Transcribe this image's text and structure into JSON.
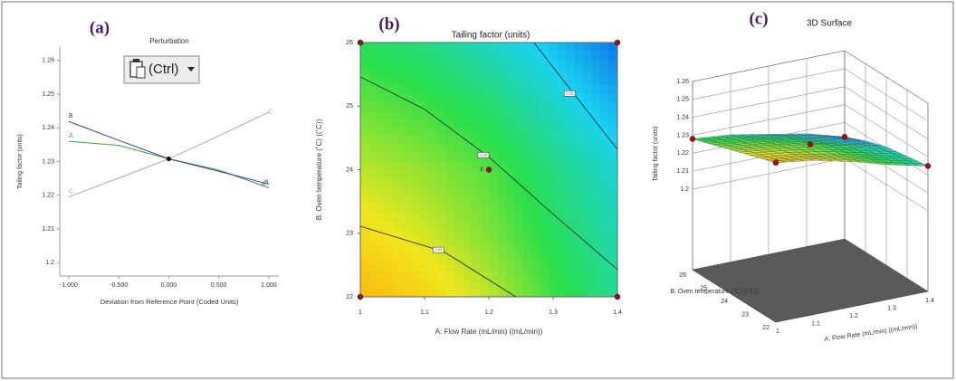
{
  "overlay": {
    "button_label": "(Ctrl)"
  },
  "chart_data": [
    {
      "type": "line",
      "panel": "(a)",
      "title": "Perturbation",
      "xlabel": "Deviation from Reference Point (Coded Units)",
      "ylabel": "Tailing factor (units)",
      "x": [
        -1,
        -0.5,
        0,
        0.5,
        1
      ],
      "series": [
        {
          "name": "A",
          "color": "#3f9f3f",
          "values": [
            1.236,
            1.2348,
            1.2308,
            1.2275,
            1.2222
          ]
        },
        {
          "name": "B",
          "color": "#3a3aa8",
          "values": [
            1.2419,
            1.2363,
            1.2308,
            1.2271,
            1.2233
          ]
        },
        {
          "name": "C",
          "color": "#aaaaaa",
          "values": [
            1.2195,
            1.2251,
            1.2308,
            1.2376,
            1.2447
          ]
        }
      ],
      "xlim": [
        -1.09,
        1.1
      ],
      "ylim": [
        1.196,
        1.264
      ],
      "xticks": [
        {
          "value": -1,
          "label": "-1.000"
        },
        {
          "value": -0.5,
          "label": "-0.500"
        },
        {
          "value": 0,
          "label": "0.000"
        },
        {
          "value": 0.5,
          "label": "0.500"
        },
        {
          "value": 1,
          "label": "1.000"
        }
      ],
      "yticks": [
        1.2,
        1.21,
        1.22,
        1.23,
        1.24,
        1.25,
        1.26
      ]
    },
    {
      "type": "contour",
      "panel": "(b)",
      "title": "Tailing factor (units)",
      "xlabel": "A: Flow Rate (mL/min) ((mL/min))",
      "ylabel": "B: Oven temperature (˚C) ((˚C))",
      "xlim": [
        1,
        1.4
      ],
      "ylim": [
        22,
        26
      ],
      "xticks": [
        1,
        1.1,
        1.2,
        1.3,
        1.4
      ],
      "yticks": [
        22,
        23,
        24,
        25,
        26
      ],
      "surface": {
        "x": [
          1,
          1.1,
          1.2,
          1.3,
          1.4
        ],
        "y": [
          22,
          23,
          24,
          25,
          26
        ],
        "z": [
          [
            1.244,
            1.241,
            1.236,
            1.23,
            1.225
          ],
          [
            1.24,
            1.237,
            1.233,
            1.228,
            1.223
          ],
          [
            1.236,
            1.234,
            1.231,
            1.226,
            1.221
          ],
          [
            1.232,
            1.23,
            1.227,
            1.222,
            1.217
          ],
          [
            1.228,
            1.226,
            1.222,
            1.218,
            1.212
          ]
        ]
      },
      "colormap": [
        "#0a5ee6",
        "#19d2f0",
        "#2adf4a",
        "#f0e61e",
        "#ff9a00"
      ],
      "color_range": [
        1.21,
        1.248
      ],
      "contours": [
        {
          "level": 1.22,
          "x": [
            1.27,
            1.334,
            1.4
          ],
          "y": [
            26,
            25.17,
            24.32
          ]
        },
        {
          "level": 1.23,
          "x": [
            1,
            1.1,
            1.2,
            1.3,
            1.4
          ],
          "y": [
            25.46,
            24.95,
            24.2,
            23.3,
            22.43
          ]
        },
        {
          "level": 1.24,
          "x": [
            1,
            1.13,
            1.242
          ],
          "y": [
            23.11,
            22.71,
            22
          ]
        }
      ],
      "design_points": {
        "x": [
          1,
          1.4,
          1,
          1.4,
          1.2
        ],
        "y": [
          22,
          22,
          26,
          26,
          24
        ]
      },
      "replicate_label": "5"
    },
    {
      "type": "surface3d",
      "panel": "(c)",
      "title": "3D Surface",
      "zlabel": "Tailing factor (units)",
      "ylabel": "B: Oven temperature (˚C) ((˚C))",
      "xlabel": "A: Flow Rate (mL/min) ((mL/min))",
      "xlim": [
        1,
        1.4
      ],
      "ylim": [
        22,
        26
      ],
      "zlim": [
        1.2,
        1.26
      ],
      "xticks": [
        1,
        1.1,
        1.2,
        1.3,
        1.4
      ],
      "yticks": [
        22,
        23,
        24,
        25,
        26
      ],
      "zticks": [
        1.2,
        1.21,
        1.22,
        1.23,
        1.24,
        1.25,
        1.26
      ],
      "surface": {
        "x": [
          1,
          1.1,
          1.2,
          1.3,
          1.4
        ],
        "y": [
          22,
          23,
          24,
          25,
          26
        ],
        "z": [
          [
            1.244,
            1.241,
            1.236,
            1.23,
            1.225
          ],
          [
            1.24,
            1.237,
            1.233,
            1.228,
            1.223
          ],
          [
            1.236,
            1.234,
            1.231,
            1.226,
            1.221
          ],
          [
            1.232,
            1.23,
            1.227,
            1.222,
            1.217
          ],
          [
            1.228,
            1.226,
            1.222,
            1.218,
            1.212
          ]
        ]
      },
      "colormap": [
        "#0a5ee6",
        "#19d2f0",
        "#2adf4a",
        "#f0e61e",
        "#ff9a00"
      ],
      "color_range": [
        1.21,
        1.248
      ],
      "design_points": {
        "x": [
          1,
          1.4,
          1,
          1.4,
          1.2
        ],
        "y": [
          22,
          22,
          26,
          26,
          24
        ],
        "z": [
          1.244,
          1.225,
          1.228,
          1.212,
          1.231
        ]
      }
    }
  ]
}
